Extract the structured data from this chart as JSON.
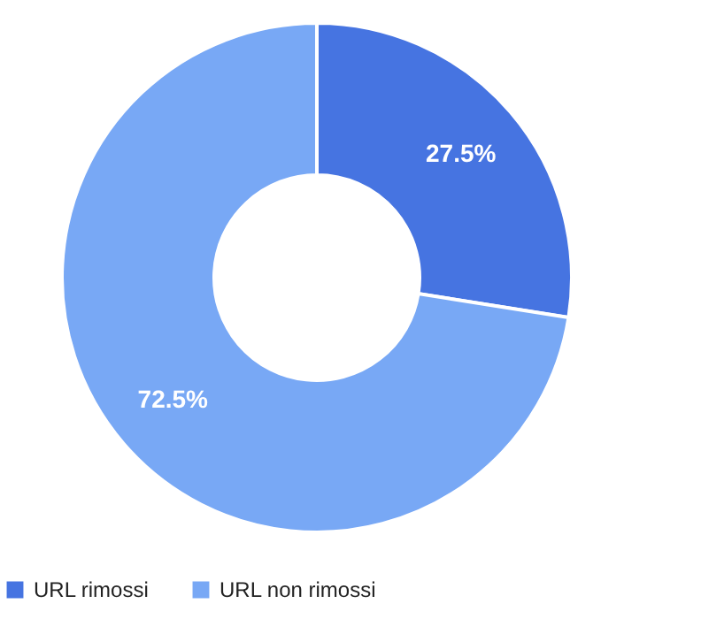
{
  "chart_data": {
    "type": "donut",
    "categories": [
      "URL rimossi",
      "URL non rimossi"
    ],
    "values": [
      27.5,
      72.5
    ],
    "colors": [
      "#4674e1",
      "#78a8f5"
    ],
    "value_labels": [
      "27.5%",
      "72.5%"
    ],
    "legend": "bottom left"
  }
}
